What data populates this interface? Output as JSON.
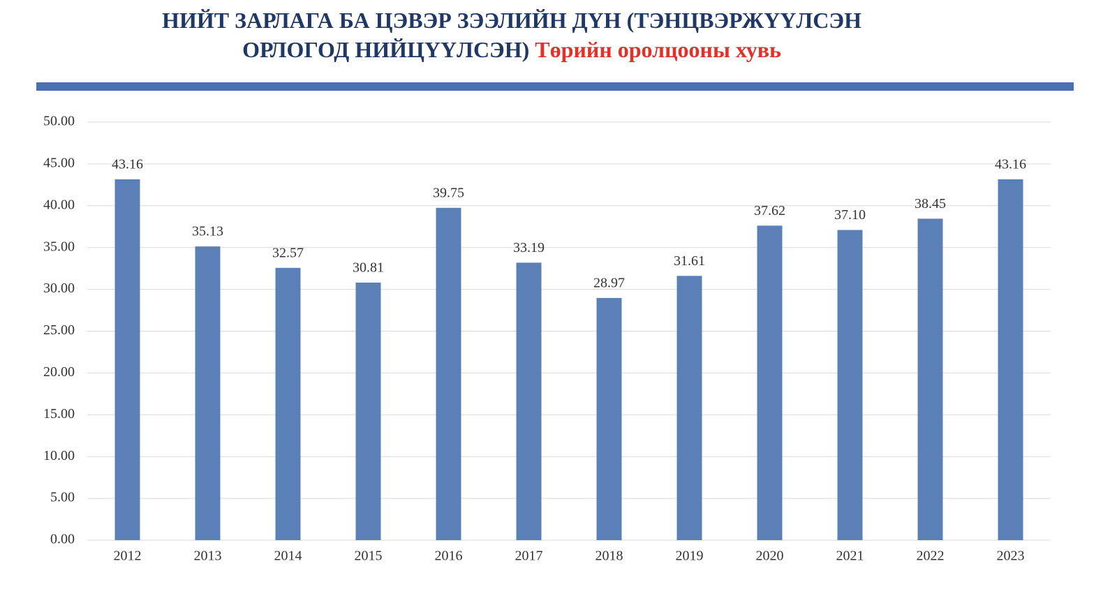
{
  "chart_data": {
    "type": "bar",
    "title": "НИЙТ ЗАРЛАГА БА ЦЭВЭР ЗЭЭЛИЙН ДҮН (ТЭНЦВЭРЖҮҮЛСЭН ОРЛОГОД НИЙЦҮҮЛСЭН)",
    "subtitle": "Төрийн оролцооны хувь",
    "categories": [
      "2012",
      "2013",
      "2014",
      "2015",
      "2016",
      "2017",
      "2018",
      "2019",
      "2020",
      "2021",
      "2022",
      "2023"
    ],
    "values": [
      43.16,
      35.13,
      32.57,
      30.81,
      39.75,
      33.19,
      28.97,
      31.61,
      37.62,
      37.1,
      38.45,
      43.16
    ],
    "value_labels": [
      "43.16",
      "35.13",
      "32.57",
      "30.81",
      "39.75",
      "33.19",
      "28.97",
      "31.61",
      "37.62",
      "37.10",
      "38.45",
      "43.16"
    ],
    "color": "#5b80b8",
    "ylim": [
      0,
      50
    ],
    "yticks": [
      {
        "value": 0,
        "label": "0.00"
      },
      {
        "value": 5,
        "label": "5.00"
      },
      {
        "value": 10,
        "label": "10.00"
      },
      {
        "value": 15,
        "label": "15.00"
      },
      {
        "value": 20,
        "label": "20.00"
      },
      {
        "value": 25,
        "label": "25.00"
      },
      {
        "value": 30,
        "label": "30.00"
      },
      {
        "value": 35,
        "label": "35.00"
      },
      {
        "value": 40,
        "label": "40.00"
      },
      {
        "value": 45,
        "label": "45.00"
      },
      {
        "value": 50,
        "label": "50.00"
      }
    ],
    "grid": true
  }
}
